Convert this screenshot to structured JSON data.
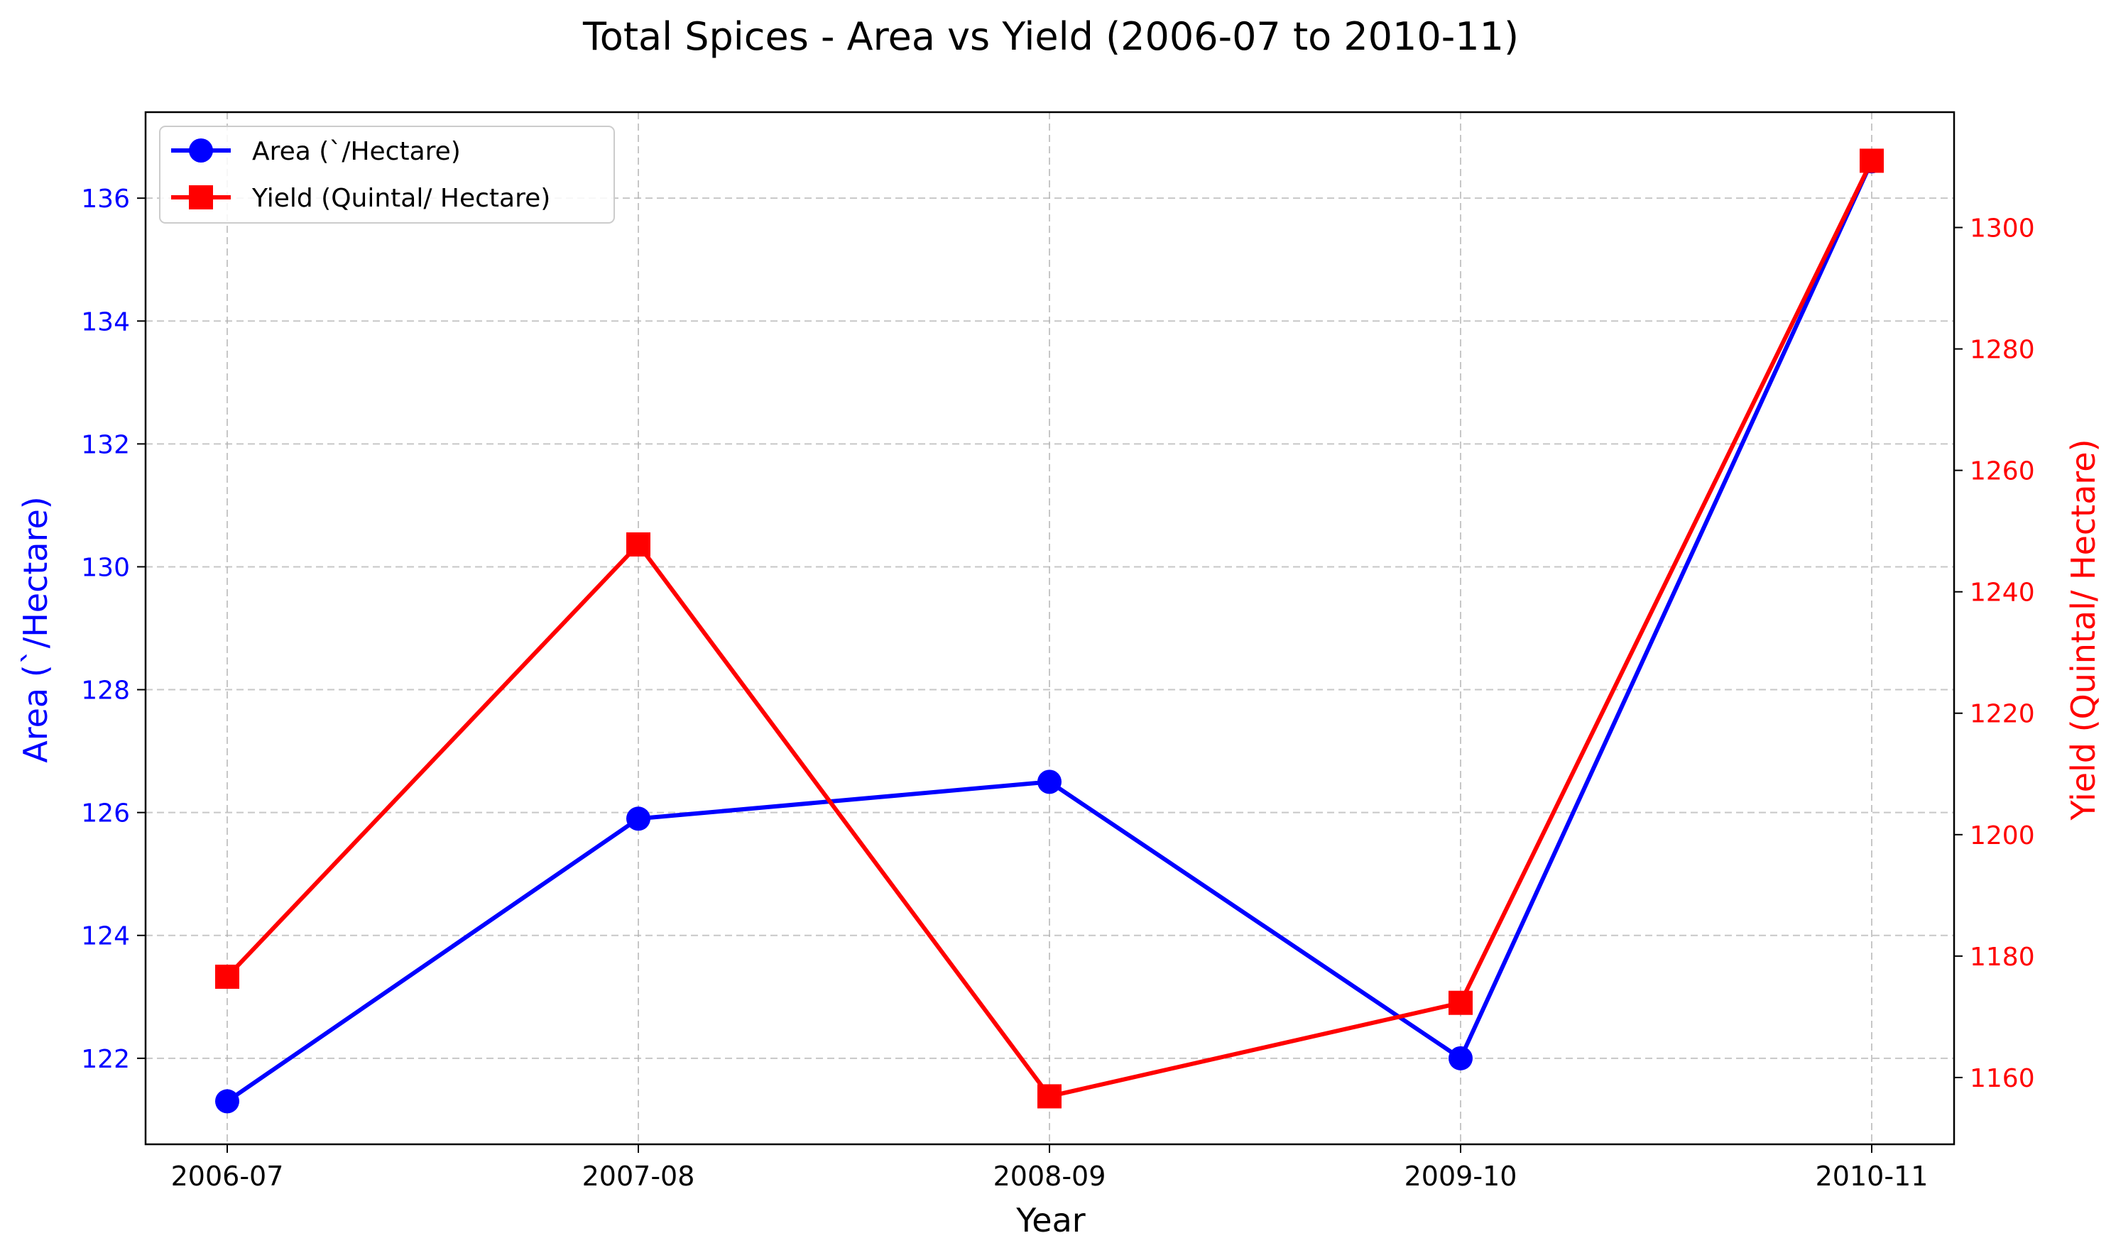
{
  "chart_data": {
    "type": "line",
    "title": "Total Spices - Area vs Yield (2006-07 to 2010-11)",
    "xlabel": "Year",
    "ylabel_left": "Area (`/Hectare)",
    "ylabel_right": "Yield (Quintal/ Hectare)",
    "categories": [
      "2006-07",
      "2007-08",
      "2008-09",
      "2009-10",
      "2010-11"
    ],
    "y_left_range": [
      120.6,
      137.4
    ],
    "y_left_ticks": [
      122,
      124,
      126,
      128,
      130,
      132,
      134,
      136
    ],
    "y_right_range": [
      1149,
      1319
    ],
    "y_right_ticks": [
      1160,
      1180,
      1200,
      1220,
      1240,
      1260,
      1280,
      1300
    ],
    "grid": true,
    "legend_position": "top-left",
    "series": [
      {
        "name": "Area (`/Hectare)",
        "axis": "left",
        "color": "#0000ff",
        "marker": "circle",
        "values": [
          121.3,
          125.9,
          126.5,
          122.0,
          136.6
        ]
      },
      {
        "name": "Yield (Quintal/ Hectare)",
        "axis": "right",
        "color": "#ff0000",
        "marker": "square",
        "values": [
          1176.6,
          1247.8,
          1156.9,
          1172.3,
          1311.0
        ]
      }
    ]
  }
}
